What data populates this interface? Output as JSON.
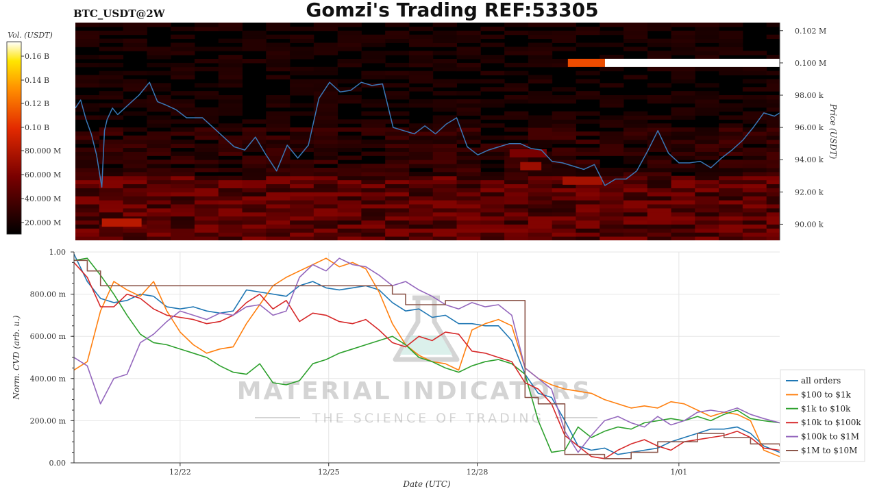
{
  "header": {
    "symbol": "BTC_USDT@2W",
    "title": "Gomzi's Trading REF:53305"
  },
  "watermark": {
    "line1": "MATERIAL INDICATORS",
    "line2": "THE SCIENCE OF TRADING"
  },
  "colors": {
    "heatmap_bg": "#000000",
    "price_line": "#3a78b8",
    "series": [
      "#1f77b4",
      "#ff7f0e",
      "#2ca02c",
      "#d62728",
      "#9467bd",
      "#8c564b"
    ]
  },
  "chart_data": [
    {
      "type": "heatmap",
      "name": "order-book-heatmap",
      "colorbar_label": "Vol. (USDT)",
      "colorbar_ticks": [
        "0.16 B",
        "0.14 B",
        "0.12 B",
        "0.10 B",
        "80.000 M",
        "60.000 M",
        "40.000 M",
        "20.000 M"
      ],
      "ylabel": "Price (USDT)",
      "yticks": [
        "0.102 M",
        "0.100 M",
        "98.00 k",
        "96.00 k",
        "94.00 k",
        "92.00 k",
        "90.00 k"
      ],
      "ylim": [
        89000,
        102500
      ],
      "xlim": [
        0,
        13.3
      ],
      "walls": [
        {
          "price": 100000,
          "x0": 9.3,
          "x1": 10.0,
          "level": 0.62
        },
        {
          "price": 100000,
          "x0": 10.0,
          "x1": 13.3,
          "level": 1.0
        },
        {
          "price": 90100,
          "x0": 0.5,
          "x1": 1.25,
          "level": 0.45
        },
        {
          "price": 92700,
          "x0": 9.2,
          "x1": 9.95,
          "level": 0.4
        },
        {
          "price": 93600,
          "x0": 8.4,
          "x1": 8.8,
          "level": 0.38
        },
        {
          "price": 94400,
          "x0": 8.2,
          "x1": 8.9,
          "level": 0.3
        }
      ],
      "price_series": {
        "x": [
          0.0,
          0.1,
          0.2,
          0.3,
          0.4,
          0.5,
          0.55,
          0.6,
          0.7,
          0.8,
          1.0,
          1.2,
          1.4,
          1.55,
          1.7,
          1.9,
          2.1,
          2.4,
          2.6,
          2.8,
          3.0,
          3.2,
          3.4,
          3.6,
          3.8,
          4.0,
          4.2,
          4.4,
          4.6,
          4.8,
          5.0,
          5.2,
          5.4,
          5.6,
          5.8,
          6.0,
          6.2,
          6.4,
          6.6,
          6.8,
          7.0,
          7.2,
          7.4,
          7.6,
          7.8,
          8.0,
          8.2,
          8.4,
          8.6,
          8.8,
          9.0,
          9.2,
          9.4,
          9.6,
          9.8,
          10.0,
          10.2,
          10.4,
          10.6,
          10.8,
          11.0,
          11.2,
          11.4,
          11.6,
          11.8,
          12.0,
          12.2,
          12.4,
          12.6,
          12.8,
          13.0,
          13.2,
          13.3
        ],
        "y": [
          97200,
          97700,
          96500,
          95600,
          94300,
          92300,
          95800,
          96500,
          97200,
          96800,
          97400,
          98000,
          98800,
          97600,
          97400,
          97100,
          96600,
          96600,
          96000,
          95400,
          94800,
          94600,
          95400,
          94300,
          93300,
          94900,
          94100,
          94900,
          97800,
          98800,
          98200,
          98300,
          98800,
          98600,
          98700,
          96000,
          95800,
          95600,
          96100,
          95600,
          96200,
          96600,
          94800,
          94300,
          94600,
          94800,
          95000,
          95000,
          94700,
          94600,
          93900,
          93800,
          93600,
          93400,
          93700,
          92400,
          92800,
          92800,
          93300,
          94500,
          95800,
          94400,
          93800,
          93800,
          93900,
          93500,
          94100,
          94600,
          95200,
          96000,
          96900,
          96700,
          96900
        ]
      }
    },
    {
      "type": "line",
      "name": "normalized-cvd",
      "xlabel": "Date (UTC)",
      "ylabel": "Norm. CVD (arb. u.)",
      "ylim": [
        0,
        1
      ],
      "xlim": [
        0,
        13.3
      ],
      "yticks": [
        "0.00",
        "200.00 m",
        "400.00 m",
        "600.00 m",
        "800.00 m",
        "1.00"
      ],
      "xticks": [
        {
          "label": "12/22",
          "x": 2
        },
        {
          "label": "12/25",
          "x": 4.8
        },
        {
          "label": "12/28",
          "x": 7.6
        },
        {
          "label": "1/01",
          "x": 11.4
        }
      ],
      "legend_position": "right",
      "x": [
        0,
        0.25,
        0.5,
        0.75,
        1,
        1.25,
        1.5,
        1.75,
        2,
        2.25,
        2.5,
        2.75,
        3,
        3.25,
        3.5,
        3.75,
        4,
        4.25,
        4.5,
        4.75,
        5,
        5.25,
        5.5,
        5.75,
        6,
        6.25,
        6.5,
        6.75,
        7,
        7.25,
        7.5,
        7.75,
        8,
        8.25,
        8.5,
        8.75,
        9,
        9.25,
        9.5,
        9.75,
        10,
        10.25,
        10.5,
        10.75,
        11,
        11.25,
        11.5,
        11.75,
        12,
        12.25,
        12.5,
        12.75,
        13,
        13.3
      ],
      "series": [
        {
          "name": "all orders",
          "values": [
            0.99,
            0.86,
            0.78,
            0.76,
            0.77,
            0.8,
            0.79,
            0.74,
            0.73,
            0.74,
            0.72,
            0.71,
            0.72,
            0.82,
            0.81,
            0.8,
            0.79,
            0.84,
            0.86,
            0.83,
            0.82,
            0.83,
            0.84,
            0.82,
            0.76,
            0.72,
            0.73,
            0.69,
            0.7,
            0.66,
            0.66,
            0.65,
            0.65,
            0.58,
            0.42,
            0.33,
            0.31,
            0.2,
            0.08,
            0.06,
            0.07,
            0.04,
            0.05,
            0.06,
            0.07,
            0.1,
            0.12,
            0.14,
            0.16,
            0.16,
            0.17,
            0.14,
            0.08,
            0.05
          ]
        },
        {
          "name": "$100 to $1k",
          "values": [
            0.44,
            0.48,
            0.72,
            0.86,
            0.82,
            0.79,
            0.86,
            0.72,
            0.62,
            0.56,
            0.52,
            0.54,
            0.55,
            0.66,
            0.75,
            0.84,
            0.88,
            0.91,
            0.94,
            0.97,
            0.93,
            0.95,
            0.92,
            0.81,
            0.66,
            0.56,
            0.51,
            0.48,
            0.47,
            0.44,
            0.63,
            0.66,
            0.68,
            0.65,
            0.45,
            0.4,
            0.37,
            0.35,
            0.34,
            0.33,
            0.3,
            0.28,
            0.26,
            0.27,
            0.26,
            0.29,
            0.28,
            0.25,
            0.22,
            0.24,
            0.23,
            0.2,
            0.06,
            0.03
          ]
        },
        {
          "name": "$1k to $10k",
          "values": [
            0.96,
            0.97,
            0.89,
            0.8,
            0.7,
            0.61,
            0.57,
            0.56,
            0.54,
            0.52,
            0.5,
            0.46,
            0.43,
            0.42,
            0.47,
            0.38,
            0.37,
            0.39,
            0.47,
            0.49,
            0.52,
            0.54,
            0.56,
            0.58,
            0.6,
            0.56,
            0.5,
            0.48,
            0.45,
            0.43,
            0.46,
            0.48,
            0.49,
            0.47,
            0.42,
            0.2,
            0.05,
            0.06,
            0.17,
            0.12,
            0.15,
            0.17,
            0.16,
            0.19,
            0.2,
            0.21,
            0.2,
            0.22,
            0.2,
            0.23,
            0.25,
            0.21,
            0.2,
            0.19
          ]
        },
        {
          "name": "$10k to $100k",
          "values": [
            0.95,
            0.88,
            0.74,
            0.74,
            0.8,
            0.78,
            0.73,
            0.7,
            0.69,
            0.68,
            0.66,
            0.67,
            0.7,
            0.76,
            0.8,
            0.73,
            0.77,
            0.67,
            0.71,
            0.7,
            0.67,
            0.66,
            0.68,
            0.63,
            0.57,
            0.55,
            0.6,
            0.58,
            0.62,
            0.61,
            0.53,
            0.52,
            0.5,
            0.48,
            0.38,
            0.35,
            0.28,
            0.13,
            0.08,
            0.03,
            0.02,
            0.06,
            0.09,
            0.11,
            0.08,
            0.06,
            0.1,
            0.11,
            0.12,
            0.13,
            0.15,
            0.12,
            0.07,
            0.06
          ]
        },
        {
          "name": "$100k to $1M",
          "values": [
            0.5,
            0.46,
            0.28,
            0.4,
            0.42,
            0.57,
            0.61,
            0.67,
            0.72,
            0.7,
            0.68,
            0.71,
            0.7,
            0.74,
            0.75,
            0.7,
            0.72,
            0.88,
            0.94,
            0.91,
            0.97,
            0.94,
            0.93,
            0.89,
            0.84,
            0.86,
            0.82,
            0.79,
            0.75,
            0.73,
            0.76,
            0.74,
            0.75,
            0.7,
            0.45,
            0.4,
            0.35,
            0.15,
            0.05,
            0.13,
            0.2,
            0.22,
            0.19,
            0.17,
            0.22,
            0.18,
            0.2,
            0.24,
            0.25,
            0.24,
            0.26,
            0.23,
            0.21,
            0.19
          ]
        },
        {
          "name": "$1M to $10M",
          "values": [
            0.96,
            0.91,
            0.84,
            0.84,
            0.84,
            0.84,
            0.84,
            0.84,
            0.84,
            0.84,
            0.84,
            0.84,
            0.84,
            0.84,
            0.84,
            0.84,
            0.84,
            0.84,
            0.84,
            0.84,
            0.84,
            0.84,
            0.84,
            0.84,
            0.8,
            0.75,
            0.75,
            0.75,
            0.77,
            0.77,
            0.77,
            0.77,
            0.77,
            0.77,
            0.31,
            0.28,
            0.28,
            0.04,
            0.04,
            0.04,
            0.02,
            0.02,
            0.05,
            0.05,
            0.1,
            0.1,
            0.1,
            0.14,
            0.14,
            0.12,
            0.12,
            0.09,
            0.09,
            0.08
          ]
        }
      ]
    }
  ]
}
